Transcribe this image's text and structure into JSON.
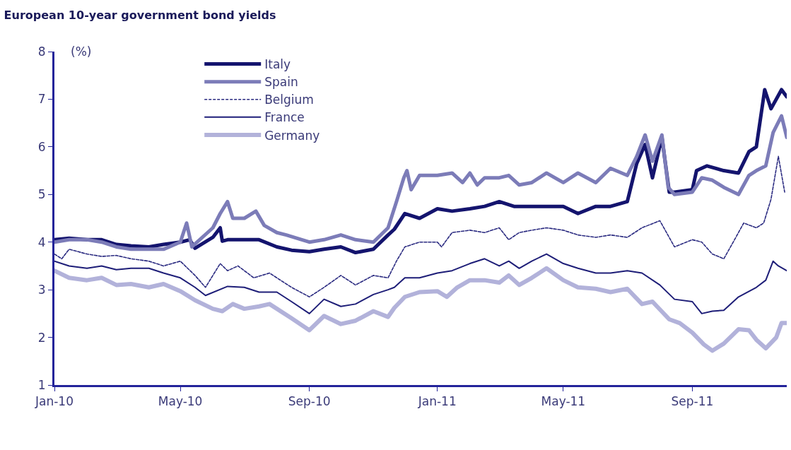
{
  "chart_data": {
    "type": "line",
    "title": "European 10-year government bond yields",
    "ylabel": "(%)",
    "xlim": [
      "2010-01-01",
      "2011-11-30"
    ],
    "ylim": [
      1,
      8
    ],
    "yticks": [
      1,
      2,
      3,
      4,
      5,
      6,
      7,
      8
    ],
    "xticks": [
      {
        "value": "2010-01-01",
        "label": "Jan-10"
      },
      {
        "value": "2010-05-01",
        "label": "May-10"
      },
      {
        "value": "2010-09-01",
        "label": "Sep-10"
      },
      {
        "value": "2011-01-01",
        "label": "Jan-11"
      },
      {
        "value": "2011-05-01",
        "label": "May-11"
      },
      {
        "value": "2011-09-01",
        "label": "Sep-11"
      }
    ],
    "legend": "top left",
    "marker": "none",
    "series": [
      {
        "name": "Italy",
        "color": "#14146e",
        "line_style": "solid",
        "x": [
          "2010-01-01",
          "2010-01-15",
          "2010-02-01",
          "2010-02-15",
          "2010-03-01",
          "2010-03-15",
          "2010-04-01",
          "2010-04-15",
          "2010-05-01",
          "2010-05-10",
          "2010-05-15",
          "2010-06-01",
          "2010-06-08",
          "2010-06-10",
          "2010-06-15",
          "2010-07-01",
          "2010-07-15",
          "2010-08-01",
          "2010-08-15",
          "2010-09-01",
          "2010-09-15",
          "2010-10-01",
          "2010-10-15",
          "2010-11-01",
          "2010-11-15",
          "2010-11-21",
          "2010-12-01",
          "2010-12-15",
          "2011-01-01",
          "2011-01-15",
          "2011-02-01",
          "2011-02-15",
          "2011-03-01",
          "2011-03-15",
          "2011-04-01",
          "2011-04-15",
          "2011-05-01",
          "2011-05-15",
          "2011-06-01",
          "2011-06-15",
          "2011-07-01",
          "2011-07-10",
          "2011-07-18",
          "2011-07-25",
          "2011-08-03",
          "2011-08-10",
          "2011-08-15",
          "2011-09-01",
          "2011-09-05",
          "2011-09-15",
          "2011-10-01",
          "2011-10-15",
          "2011-10-25",
          "2011-11-01",
          "2011-11-09",
          "2011-11-15",
          "2011-11-25",
          "2011-11-30"
        ],
        "values": [
          4.05,
          4.08,
          4.05,
          4.05,
          3.95,
          3.92,
          3.9,
          3.95,
          4.0,
          4.05,
          3.87,
          4.1,
          4.3,
          4.02,
          4.05,
          4.05,
          4.05,
          3.9,
          3.83,
          3.8,
          3.85,
          3.9,
          3.78,
          3.85,
          4.15,
          4.27,
          4.6,
          4.5,
          4.7,
          4.65,
          4.7,
          4.75,
          4.85,
          4.75,
          4.75,
          4.75,
          4.75,
          4.6,
          4.75,
          4.75,
          4.85,
          5.65,
          6.05,
          5.35,
          6.2,
          5.05,
          5.05,
          5.1,
          5.5,
          5.6,
          5.5,
          5.45,
          5.9,
          6.0,
          7.2,
          6.8,
          7.2,
          7.05
        ]
      },
      {
        "name": "Spain",
        "color": "#7c7cb8",
        "line_style": "solid",
        "x": [
          "2010-01-01",
          "2010-01-15",
          "2010-02-01",
          "2010-02-15",
          "2010-03-01",
          "2010-03-15",
          "2010-04-01",
          "2010-04-15",
          "2010-05-01",
          "2010-05-07",
          "2010-05-12",
          "2010-06-01",
          "2010-06-08",
          "2010-06-15",
          "2010-06-20",
          "2010-07-01",
          "2010-07-12",
          "2010-07-20",
          "2010-08-01",
          "2010-08-10",
          "2010-09-01",
          "2010-09-15",
          "2010-10-01",
          "2010-10-15",
          "2010-11-01",
          "2010-11-15",
          "2010-11-23",
          "2010-11-30",
          "2010-12-03",
          "2010-12-07",
          "2010-12-15",
          "2011-01-01",
          "2011-01-15",
          "2011-01-25",
          "2011-02-01",
          "2011-02-08",
          "2011-02-15",
          "2011-03-01",
          "2011-03-10",
          "2011-03-20",
          "2011-04-01",
          "2011-04-15",
          "2011-05-01",
          "2011-05-15",
          "2011-06-01",
          "2011-06-15",
          "2011-07-01",
          "2011-07-10",
          "2011-07-18",
          "2011-07-25",
          "2011-08-03",
          "2011-08-09",
          "2011-08-15",
          "2011-09-01",
          "2011-09-10",
          "2011-09-20",
          "2011-10-01",
          "2011-10-15",
          "2011-10-25",
          "2011-11-01",
          "2011-11-10",
          "2011-11-17",
          "2011-11-25",
          "2011-11-30"
        ],
        "values": [
          4.0,
          4.05,
          4.05,
          4.0,
          3.9,
          3.85,
          3.85,
          3.85,
          4.0,
          4.4,
          3.9,
          4.3,
          4.6,
          4.85,
          4.5,
          4.5,
          4.65,
          4.35,
          4.2,
          4.15,
          4.0,
          4.05,
          4.15,
          4.05,
          4.0,
          4.3,
          4.85,
          5.35,
          5.5,
          5.1,
          5.4,
          5.4,
          5.45,
          5.25,
          5.45,
          5.2,
          5.35,
          5.35,
          5.4,
          5.2,
          5.25,
          5.45,
          5.25,
          5.45,
          5.25,
          5.55,
          5.4,
          5.8,
          6.25,
          5.7,
          6.25,
          5.15,
          5.0,
          5.05,
          5.35,
          5.3,
          5.15,
          5.0,
          5.4,
          5.5,
          5.6,
          6.3,
          6.65,
          6.2
        ]
      },
      {
        "name": "Belgium",
        "color": "#2a2a80",
        "line_style": "dashed",
        "x": [
          "2010-01-01",
          "2010-01-08",
          "2010-01-15",
          "2010-02-01",
          "2010-02-15",
          "2010-03-01",
          "2010-03-15",
          "2010-04-01",
          "2010-04-15",
          "2010-05-01",
          "2010-05-15",
          "2010-05-25",
          "2010-06-08",
          "2010-06-15",
          "2010-06-25",
          "2010-07-10",
          "2010-07-25",
          "2010-08-15",
          "2010-09-01",
          "2010-09-15",
          "2010-10-01",
          "2010-10-15",
          "2010-11-01",
          "2010-11-15",
          "2010-11-23",
          "2010-12-01",
          "2010-12-15",
          "2011-01-01",
          "2011-01-05",
          "2011-01-15",
          "2011-02-01",
          "2011-02-15",
          "2011-03-01",
          "2011-03-10",
          "2011-03-20",
          "2011-04-01",
          "2011-04-15",
          "2011-05-01",
          "2011-05-15",
          "2011-06-01",
          "2011-06-15",
          "2011-07-01",
          "2011-07-15",
          "2011-08-01",
          "2011-08-15",
          "2011-09-01",
          "2011-09-10",
          "2011-09-20",
          "2011-10-01",
          "2011-10-10",
          "2011-10-20",
          "2011-11-01",
          "2011-11-08",
          "2011-11-15",
          "2011-11-22",
          "2011-11-28"
        ],
        "values": [
          3.75,
          3.65,
          3.85,
          3.75,
          3.7,
          3.72,
          3.65,
          3.6,
          3.5,
          3.6,
          3.3,
          3.05,
          3.55,
          3.4,
          3.5,
          3.25,
          3.35,
          3.05,
          2.85,
          3.05,
          3.3,
          3.1,
          3.3,
          3.25,
          3.6,
          3.9,
          4.0,
          4.0,
          3.9,
          4.2,
          4.25,
          4.2,
          4.3,
          4.05,
          4.2,
          4.25,
          4.3,
          4.25,
          4.15,
          4.1,
          4.15,
          4.1,
          4.3,
          4.45,
          3.9,
          4.05,
          4.0,
          3.75,
          3.65,
          4.0,
          4.4,
          4.3,
          4.4,
          4.9,
          5.8,
          5.05
        ]
      },
      {
        "name": "France",
        "color": "#1e1e78",
        "line_style": "solid",
        "x": [
          "2010-01-01",
          "2010-01-15",
          "2010-02-01",
          "2010-02-15",
          "2010-03-01",
          "2010-03-15",
          "2010-04-01",
          "2010-04-15",
          "2010-05-01",
          "2010-05-15",
          "2010-05-25",
          "2010-06-15",
          "2010-07-01",
          "2010-07-15",
          "2010-08-01",
          "2010-08-15",
          "2010-09-01",
          "2010-09-15",
          "2010-10-01",
          "2010-10-15",
          "2010-11-01",
          "2010-11-15",
          "2010-11-21",
          "2010-12-01",
          "2010-12-15",
          "2011-01-01",
          "2011-01-15",
          "2011-02-01",
          "2011-02-15",
          "2011-03-01",
          "2011-03-10",
          "2011-03-20",
          "2011-04-01",
          "2011-04-15",
          "2011-05-01",
          "2011-05-15",
          "2011-06-01",
          "2011-06-15",
          "2011-07-01",
          "2011-07-15",
          "2011-08-01",
          "2011-08-15",
          "2011-09-01",
          "2011-09-10",
          "2011-09-20",
          "2011-10-01",
          "2011-10-15",
          "2011-11-01",
          "2011-11-10",
          "2011-11-17",
          "2011-11-22",
          "2011-11-30"
        ],
        "values": [
          3.6,
          3.5,
          3.45,
          3.5,
          3.42,
          3.45,
          3.45,
          3.35,
          3.25,
          3.05,
          2.88,
          3.07,
          3.05,
          2.95,
          2.95,
          2.75,
          2.5,
          2.8,
          2.65,
          2.7,
          2.9,
          3.0,
          3.05,
          3.25,
          3.25,
          3.35,
          3.4,
          3.55,
          3.65,
          3.5,
          3.6,
          3.45,
          3.6,
          3.75,
          3.55,
          3.45,
          3.35,
          3.35,
          3.4,
          3.35,
          3.1,
          2.8,
          2.75,
          2.5,
          2.55,
          2.57,
          2.85,
          3.05,
          3.2,
          3.6,
          3.5,
          3.4
        ]
      },
      {
        "name": "Germany",
        "color": "#b2b2da",
        "line_style": "solid",
        "x": [
          "2010-01-01",
          "2010-01-15",
          "2010-02-01",
          "2010-02-15",
          "2010-03-01",
          "2010-03-15",
          "2010-04-01",
          "2010-04-15",
          "2010-05-01",
          "2010-05-15",
          "2010-06-01",
          "2010-06-10",
          "2010-06-20",
          "2010-07-01",
          "2010-07-15",
          "2010-07-25",
          "2010-08-15",
          "2010-09-01",
          "2010-09-15",
          "2010-10-01",
          "2010-10-15",
          "2010-11-01",
          "2010-11-15",
          "2010-11-21",
          "2010-12-01",
          "2010-12-15",
          "2011-01-01",
          "2011-01-10",
          "2011-01-20",
          "2011-02-01",
          "2011-02-15",
          "2011-03-01",
          "2011-03-10",
          "2011-03-20",
          "2011-04-01",
          "2011-04-15",
          "2011-05-01",
          "2011-05-15",
          "2011-06-01",
          "2011-06-15",
          "2011-07-01",
          "2011-07-15",
          "2011-07-25",
          "2011-08-10",
          "2011-08-20",
          "2011-09-01",
          "2011-09-12",
          "2011-09-20",
          "2011-10-01",
          "2011-10-15",
          "2011-10-25",
          "2011-11-01",
          "2011-11-10",
          "2011-11-20",
          "2011-11-25",
          "2011-11-30"
        ],
        "values": [
          3.4,
          3.25,
          3.2,
          3.25,
          3.1,
          3.12,
          3.05,
          3.12,
          2.97,
          2.78,
          2.6,
          2.55,
          2.7,
          2.6,
          2.65,
          2.7,
          2.4,
          2.15,
          2.45,
          2.28,
          2.35,
          2.55,
          2.43,
          2.62,
          2.85,
          2.95,
          2.97,
          2.85,
          3.05,
          3.2,
          3.2,
          3.15,
          3.3,
          3.1,
          3.25,
          3.45,
          3.2,
          3.05,
          3.02,
          2.95,
          3.02,
          2.7,
          2.75,
          2.38,
          2.3,
          2.1,
          1.85,
          1.72,
          1.87,
          2.17,
          2.15,
          1.95,
          1.77,
          2.0,
          2.3,
          2.3
        ]
      }
    ]
  }
}
